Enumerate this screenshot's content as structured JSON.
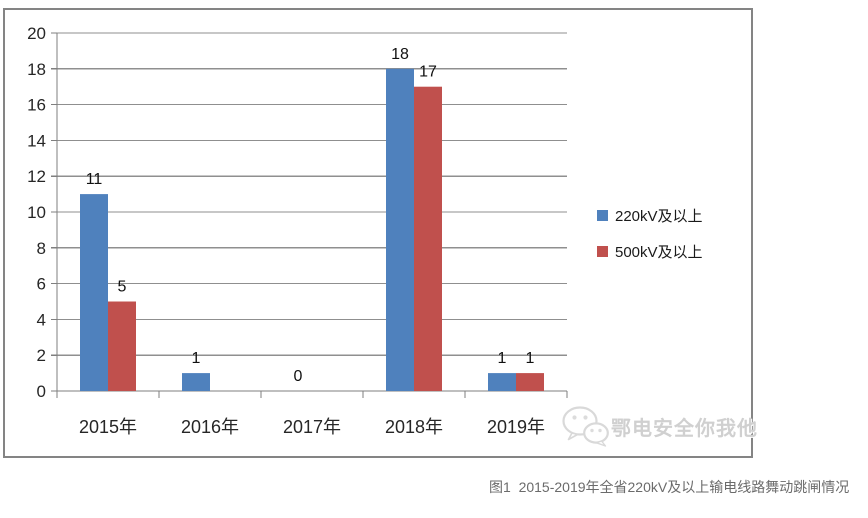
{
  "caption": "图1  2015-2019年全省220kV及以上输电线路舞动跳闸情况",
  "watermark": {
    "icon": "wechat-icon",
    "text": "鄂电安全你我他"
  },
  "chart_data": {
    "type": "bar",
    "title": "",
    "xlabel": "",
    "ylabel": "",
    "categories": [
      "2015年",
      "2016年",
      "2017年",
      "2018年",
      "2019年"
    ],
    "series": [
      {
        "name": "220kV及以上",
        "color": "#4F81BD",
        "values": [
          11,
          1,
          0,
          18,
          1
        ],
        "labels": [
          "11",
          "1",
          "0",
          "18",
          "1"
        ]
      },
      {
        "name": "500kV及以上",
        "color": "#C0504D",
        "values": [
          5,
          null,
          null,
          17,
          1
        ],
        "labels": [
          "5",
          null,
          null,
          "17",
          "1"
        ]
      }
    ],
    "ylim": [
      0,
      20
    ],
    "yticks": [
      0,
      2,
      4,
      6,
      8,
      10,
      12,
      14,
      16,
      18,
      20
    ],
    "grid": true,
    "legend_position": "right",
    "data_labels": true,
    "colors": {
      "gridline": "#8F8F8F",
      "axis": "#7F7F7F",
      "tick_label": "#262626",
      "data_label": "#111111",
      "frame_border": "#848484"
    }
  }
}
